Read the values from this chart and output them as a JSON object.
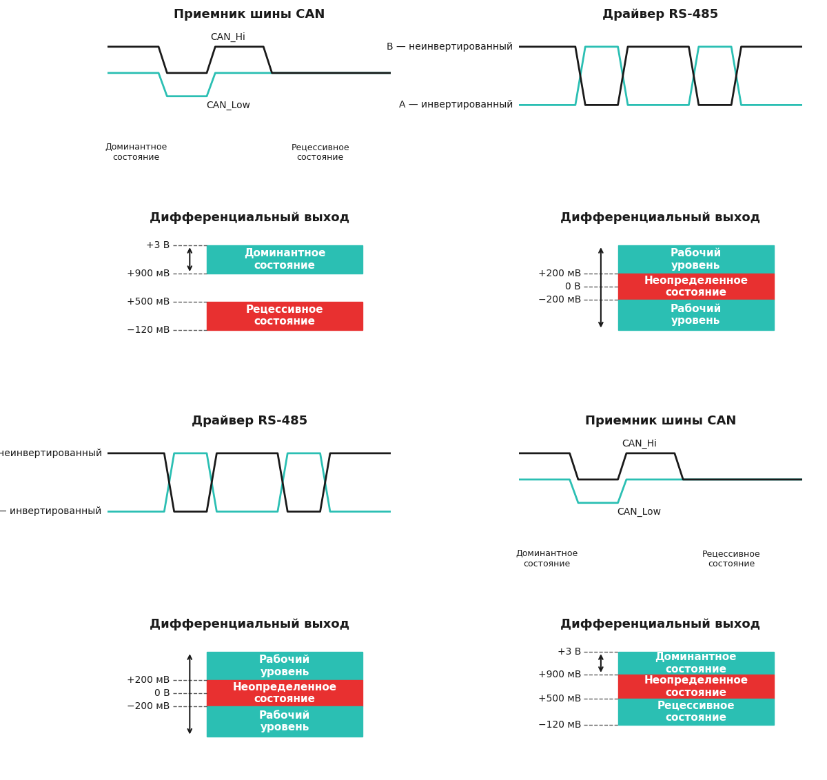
{
  "bg_color": "#ffffff",
  "teal": "#2bbfb3",
  "red": "#e83030",
  "black": "#1a1a1a",
  "line_black": "#1a1a1a",
  "line_teal": "#2bbfb3",
  "panels": {
    "top_left_title": "Приемник шины CAN",
    "top_right_title": "Драйвер RS-485",
    "mid_left_title": "Дифференциальный выход",
    "mid_right_title": "Дифференциальный выход",
    "bot_left_title": "Драйвер RS-485",
    "bot_right_title": "Приемник шины CAN",
    "botbot_left_title": "Дифференциальный выход",
    "botbot_right_title": "Дифференциальный выход"
  },
  "font_size_title": 13,
  "font_size_label": 10,
  "font_size_box": 11
}
